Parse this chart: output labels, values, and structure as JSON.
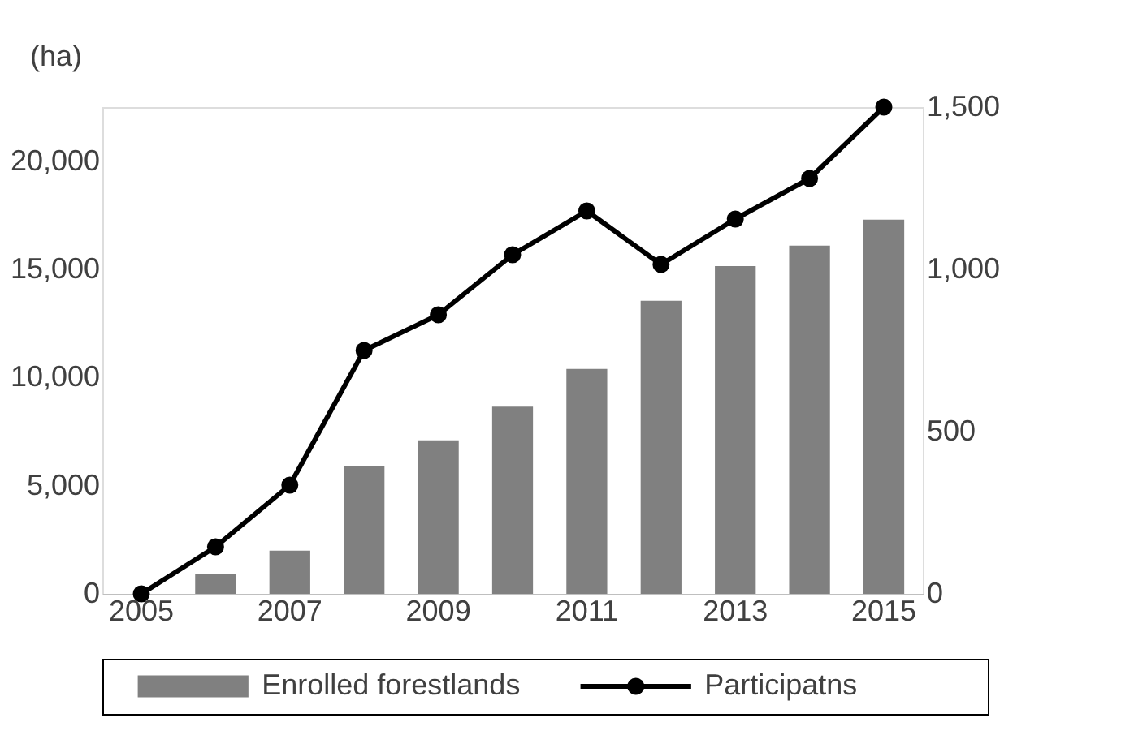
{
  "chart_data": {
    "type": "bar",
    "categories": [
      "2005",
      null,
      "2007",
      null,
      "2009",
      null,
      "2011",
      null,
      "2013",
      null,
      "2015"
    ],
    "ylabel": "(ha)",
    "series": [
      {
        "name": "Enrolled forestlands",
        "color": "#808080",
        "values": [
          0,
          900,
          2000,
          5900,
          7100,
          8650,
          10400,
          13550,
          15150,
          16100,
          17300
        ]
      },
      {
        "name": "Participatns",
        "type": "line",
        "axis": "y2",
        "color": "#000000",
        "values": [
          0,
          145,
          335,
          750,
          860,
          1045,
          1180,
          1015,
          1155,
          1280,
          1500
        ]
      }
    ],
    "ylim": [
      0,
      22500
    ],
    "yticks": [
      0,
      {
        "value": 5000,
        "label": "5,000"
      },
      {
        "value": 10000,
        "label": "10,000"
      },
      {
        "value": 15000,
        "label": "15,000"
      },
      {
        "value": 20000,
        "label": "20,000"
      }
    ],
    "y2lim": [
      0,
      1500
    ],
    "y2ticks": [
      0,
      500,
      {
        "value": 1000,
        "label": "1,000"
      },
      {
        "value": 1500,
        "label": "1,500"
      }
    ],
    "marker": "circle",
    "line_style": "solid",
    "grid": false,
    "legend": "bottom"
  }
}
